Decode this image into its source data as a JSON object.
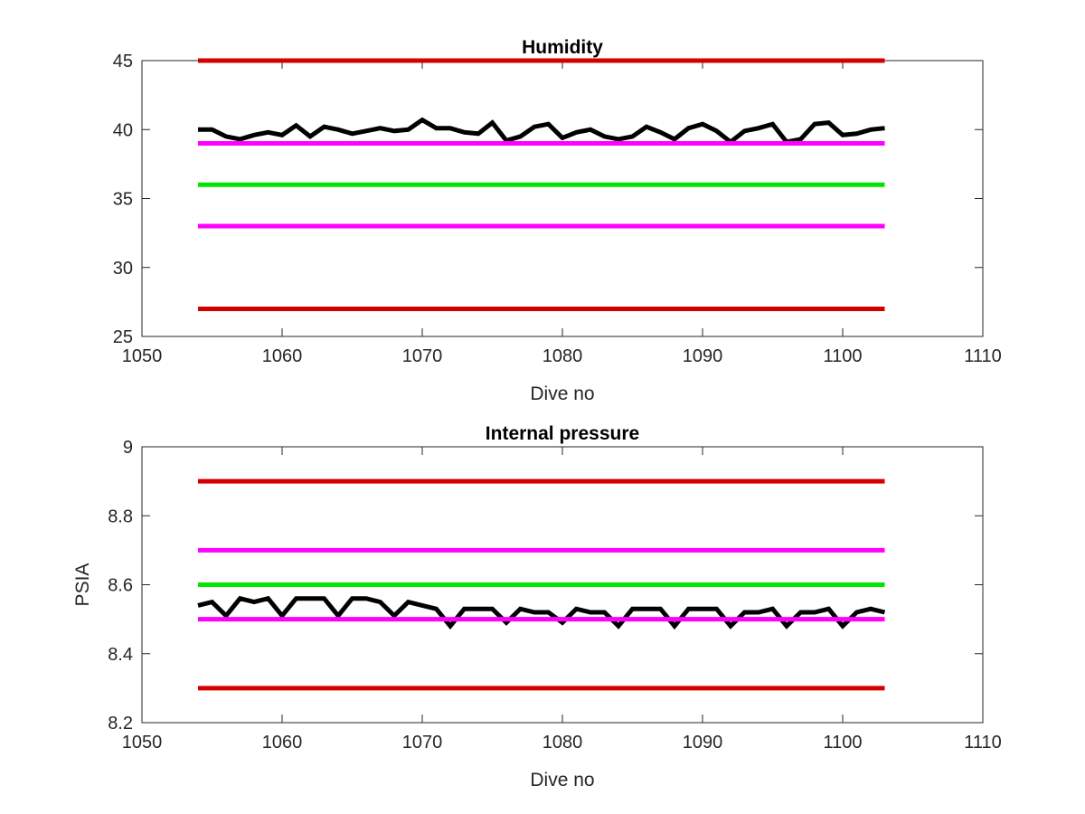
{
  "chart_data": [
    {
      "type": "line",
      "title": "Humidity",
      "xlabel": "Dive no",
      "ylabel": "",
      "xlim": [
        1050,
        1110
      ],
      "ylim": [
        25,
        45
      ],
      "xticks": [
        1050,
        1060,
        1070,
        1080,
        1090,
        1100,
        1110
      ],
      "yticks": [
        25,
        30,
        35,
        40,
        45
      ],
      "xtick_labels": [
        "1050",
        "1060",
        "1070",
        "1080",
        "1090",
        "1100",
        "1110"
      ],
      "ytick_labels": [
        "25",
        "30",
        "35",
        "40",
        "45"
      ],
      "grid": false,
      "legend": "none",
      "series": [
        {
          "color": "#000000",
          "x": [
            1054,
            1055,
            1056,
            1057,
            1058,
            1059,
            1060,
            1061,
            1062,
            1063,
            1064,
            1065,
            1066,
            1067,
            1068,
            1069,
            1070,
            1071,
            1072,
            1073,
            1074,
            1075,
            1076,
            1077,
            1078,
            1079,
            1080,
            1081,
            1082,
            1083,
            1084,
            1085,
            1086,
            1087,
            1088,
            1089,
            1090,
            1091,
            1092,
            1093,
            1094,
            1095,
            1096,
            1097,
            1098,
            1099,
            1100,
            1101,
            1102,
            1103
          ],
          "y": [
            40.0,
            40.0,
            39.5,
            39.3,
            39.6,
            39.8,
            39.6,
            40.3,
            39.5,
            40.2,
            40.0,
            39.7,
            39.9,
            40.1,
            39.9,
            40.0,
            40.7,
            40.1,
            40.1,
            39.8,
            39.7,
            40.5,
            39.2,
            39.5,
            40.2,
            40.4,
            39.4,
            39.8,
            40.0,
            39.5,
            39.3,
            39.5,
            40.2,
            39.8,
            39.3,
            40.1,
            40.4,
            39.9,
            39.1,
            39.9,
            40.1,
            40.4,
            39.1,
            39.3,
            40.4,
            40.5,
            39.6,
            39.7,
            40.0,
            40.1
          ]
        },
        {
          "color": "#d40000",
          "x": [
            1054,
            1103
          ],
          "y": [
            45,
            45
          ]
        },
        {
          "color": "#ff00ff",
          "x": [
            1054,
            1103
          ],
          "y": [
            39,
            39
          ]
        },
        {
          "color": "#00e600",
          "x": [
            1054,
            1103
          ],
          "y": [
            36,
            36
          ]
        },
        {
          "color": "#ff00ff",
          "x": [
            1054,
            1103
          ],
          "y": [
            33,
            33
          ]
        },
        {
          "color": "#d40000",
          "x": [
            1054,
            1103
          ],
          "y": [
            27,
            27
          ]
        }
      ]
    },
    {
      "type": "line",
      "title": "Internal pressure",
      "xlabel": "Dive no",
      "ylabel": "PSIA",
      "xlim": [
        1050,
        1110
      ],
      "ylim": [
        8.2,
        9
      ],
      "xticks": [
        1050,
        1060,
        1070,
        1080,
        1090,
        1100,
        1110
      ],
      "yticks": [
        8.2,
        8.4,
        8.6,
        8.8,
        9
      ],
      "xtick_labels": [
        "1050",
        "1060",
        "1070",
        "1080",
        "1090",
        "1100",
        "1110"
      ],
      "ytick_labels": [
        "8.2",
        "8.4",
        "8.6",
        "8.8",
        "9"
      ],
      "grid": false,
      "legend": "none",
      "series": [
        {
          "color": "#000000",
          "x": [
            1054,
            1055,
            1056,
            1057,
            1058,
            1059,
            1060,
            1061,
            1062,
            1063,
            1064,
            1065,
            1066,
            1067,
            1068,
            1069,
            1070,
            1071,
            1072,
            1073,
            1074,
            1075,
            1076,
            1077,
            1078,
            1079,
            1080,
            1081,
            1082,
            1083,
            1084,
            1085,
            1086,
            1087,
            1088,
            1089,
            1090,
            1091,
            1092,
            1093,
            1094,
            1095,
            1096,
            1097,
            1098,
            1099,
            1100,
            1101,
            1102,
            1103
          ],
          "y": [
            8.54,
            8.55,
            8.51,
            8.56,
            8.55,
            8.56,
            8.51,
            8.56,
            8.56,
            8.56,
            8.51,
            8.56,
            8.56,
            8.55,
            8.51,
            8.55,
            8.54,
            8.53,
            8.48,
            8.53,
            8.53,
            8.53,
            8.49,
            8.53,
            8.52,
            8.52,
            8.49,
            8.53,
            8.52,
            8.52,
            8.48,
            8.53,
            8.53,
            8.53,
            8.48,
            8.53,
            8.53,
            8.53,
            8.48,
            8.52,
            8.52,
            8.53,
            8.48,
            8.52,
            8.52,
            8.53,
            8.48,
            8.52,
            8.53,
            8.52
          ]
        },
        {
          "color": "#d40000",
          "x": [
            1054,
            1103
          ],
          "y": [
            8.9,
            8.9
          ]
        },
        {
          "color": "#ff00ff",
          "x": [
            1054,
            1103
          ],
          "y": [
            8.7,
            8.7
          ]
        },
        {
          "color": "#00e600",
          "x": [
            1054,
            1103
          ],
          "y": [
            8.6,
            8.6
          ]
        },
        {
          "color": "#ff00ff",
          "x": [
            1054,
            1103
          ],
          "y": [
            8.5,
            8.5
          ]
        },
        {
          "color": "#d40000",
          "x": [
            1054,
            1103
          ],
          "y": [
            8.3,
            8.3
          ]
        }
      ]
    }
  ]
}
